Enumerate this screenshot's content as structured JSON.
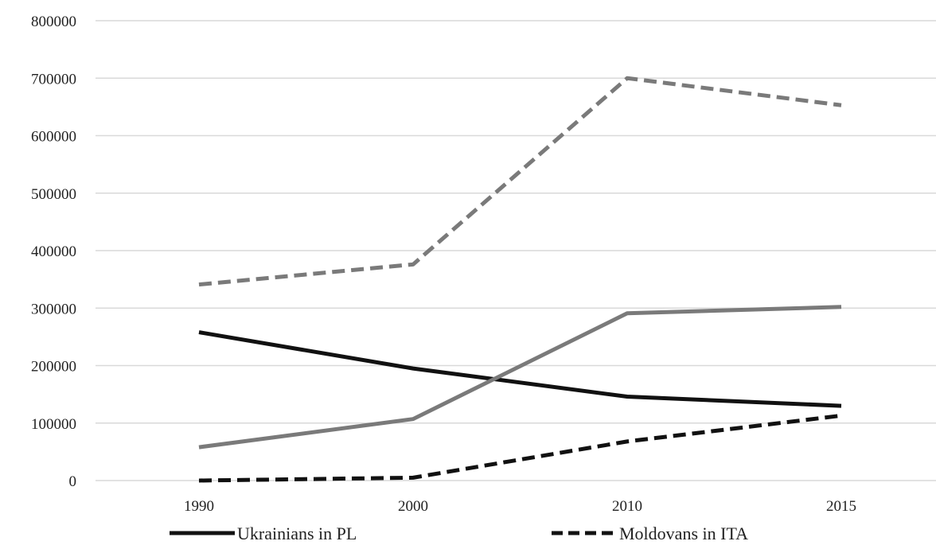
{
  "chart_data": {
    "type": "line",
    "title": "",
    "xlabel": "",
    "ylabel": "",
    "categories": [
      "1990",
      "2000",
      "2010",
      "2015"
    ],
    "ylim": [
      0,
      800000
    ],
    "y_ticks": [
      "0",
      "100000",
      "200000",
      "300000",
      "400000",
      "500000",
      "600000",
      "700000",
      "800000"
    ],
    "grid": "horizontal",
    "legend_position": "bottom",
    "series": [
      {
        "name": "Ukrainians in PL",
        "values": [
          258000,
          195000,
          146000,
          130000
        ],
        "color": "#111111",
        "dash": "solid"
      },
      {
        "name": "Moldovans in ITA",
        "values": [
          0,
          5000,
          68000,
          113000
        ],
        "color": "#111111",
        "dash": "dashed"
      },
      {
        "values": [
          58000,
          107000,
          291000,
          302000
        ],
        "color": "#7a7a7a",
        "dash": "solid"
      },
      {
        "values": [
          341000,
          376000,
          700000,
          653000
        ],
        "color": "#7a7a7a",
        "dash": "dashed"
      }
    ]
  }
}
